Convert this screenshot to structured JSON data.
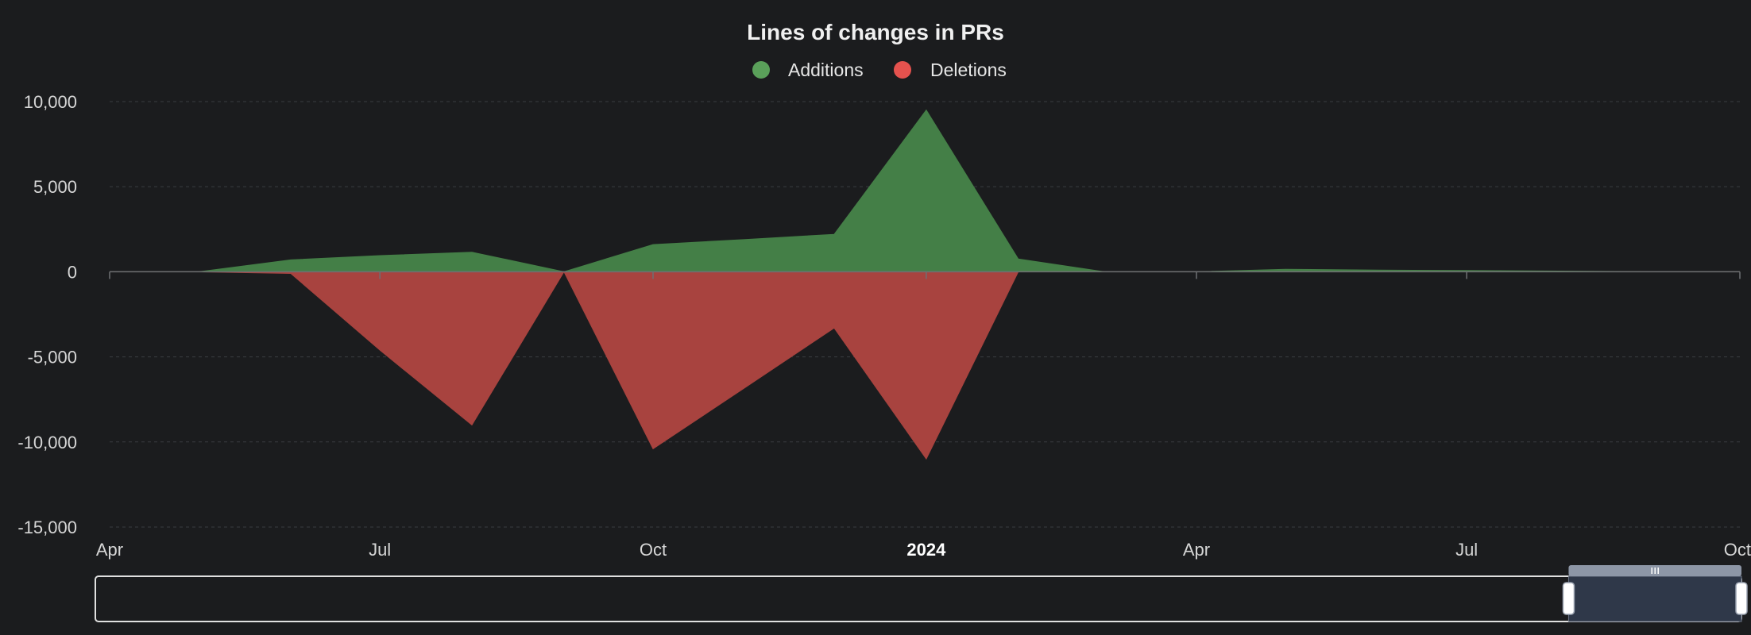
{
  "chart_data": {
    "type": "area",
    "title": "Lines of changes in PRs",
    "legend_position": "top-center",
    "grid": true,
    "ylim": [
      -15000,
      10000
    ],
    "yticks": [
      10000,
      5000,
      0,
      -5000,
      -10000,
      -15000
    ],
    "ytick_labels": [
      "10,000",
      "5,000",
      "0",
      "-5,000",
      "-10,000",
      "-15,000"
    ],
    "xlim": [
      "2023-04-01",
      "2024-10-01"
    ],
    "xticks": [
      {
        "date": "2023-04-01",
        "label": "Apr",
        "bold": false
      },
      {
        "date": "2023-07-01",
        "label": "Jul",
        "bold": false
      },
      {
        "date": "2023-10-01",
        "label": "Oct",
        "bold": false
      },
      {
        "date": "2024-01-01",
        "label": "2024",
        "bold": true
      },
      {
        "date": "2024-04-01",
        "label": "Apr",
        "bold": false
      },
      {
        "date": "2024-07-01",
        "label": "Jul",
        "bold": false
      },
      {
        "date": "2024-10-01",
        "label": "Oct",
        "bold": false
      }
    ],
    "x": [
      "2023-04-01",
      "2023-05-01",
      "2023-06-01",
      "2023-07-01",
      "2023-08-01",
      "2023-09-01",
      "2023-10-01",
      "2023-11-01",
      "2023-12-01",
      "2024-01-01",
      "2024-02-01",
      "2024-03-01",
      "2024-04-01",
      "2024-05-01",
      "2024-06-01",
      "2024-07-01",
      "2024-08-01",
      "2024-09-01",
      "2024-10-01"
    ],
    "series": [
      {
        "name": "Additions",
        "color": "#5aa05a",
        "fill": "#447f47",
        "values": [
          0,
          0,
          700,
          950,
          1150,
          0,
          1600,
          1900,
          2200,
          9500,
          750,
          0,
          0,
          150,
          100,
          80,
          40,
          0,
          0
        ]
      },
      {
        "name": "Deletions",
        "color": "#e5524e",
        "fill": "#a8433f",
        "values": [
          0,
          0,
          -100,
          -4600,
          -9000,
          0,
          -10400,
          -6800,
          -3300,
          -11000,
          0,
          0,
          0,
          0,
          0,
          0,
          0,
          0,
          0
        ]
      }
    ]
  },
  "zoom_slider": {
    "selected_range": [
      0.895,
      1.0
    ]
  }
}
